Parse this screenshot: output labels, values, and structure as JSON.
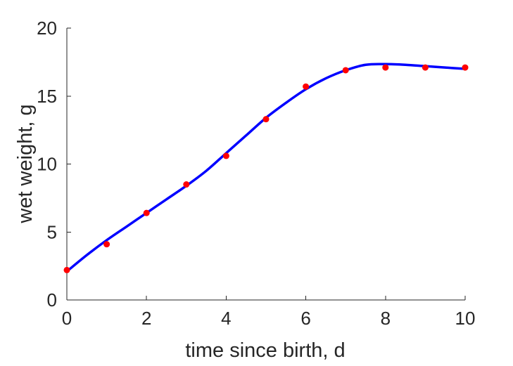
{
  "chart_data": {
    "type": "scatter",
    "xlabel": "time since birth, d",
    "ylabel": "wet weight, g",
    "xlim": [
      0,
      10
    ],
    "ylim": [
      0,
      20
    ],
    "xticks": [
      "0",
      "2",
      "4",
      "6",
      "8",
      "10"
    ],
    "yticks": [
      "0",
      "5",
      "10",
      "15",
      "20"
    ],
    "grid": false,
    "series": [
      {
        "kind": "points",
        "color": "#ff0000",
        "x": [
          0,
          1,
          2,
          3,
          4,
          5,
          6,
          7,
          8,
          9,
          10
        ],
        "y": [
          2.2,
          4.1,
          6.4,
          8.5,
          10.6,
          13.3,
          15.7,
          16.9,
          17.1,
          17.1,
          17.1
        ]
      },
      {
        "kind": "line",
        "color": "#0000ff",
        "x": [
          0,
          0.5,
          1,
          1.5,
          2,
          2.5,
          3,
          3.5,
          4,
          4.5,
          5,
          5.5,
          6,
          6.5,
          7,
          7.5,
          8,
          8.5,
          9,
          9.5,
          10
        ],
        "y": [
          2.1,
          3.3,
          4.4,
          5.4,
          6.4,
          7.4,
          8.4,
          9.5,
          10.8,
          12.1,
          13.4,
          14.5,
          15.5,
          16.3,
          16.9,
          17.3,
          17.35,
          17.3,
          17.2,
          17.1,
          17.0
        ]
      }
    ]
  }
}
